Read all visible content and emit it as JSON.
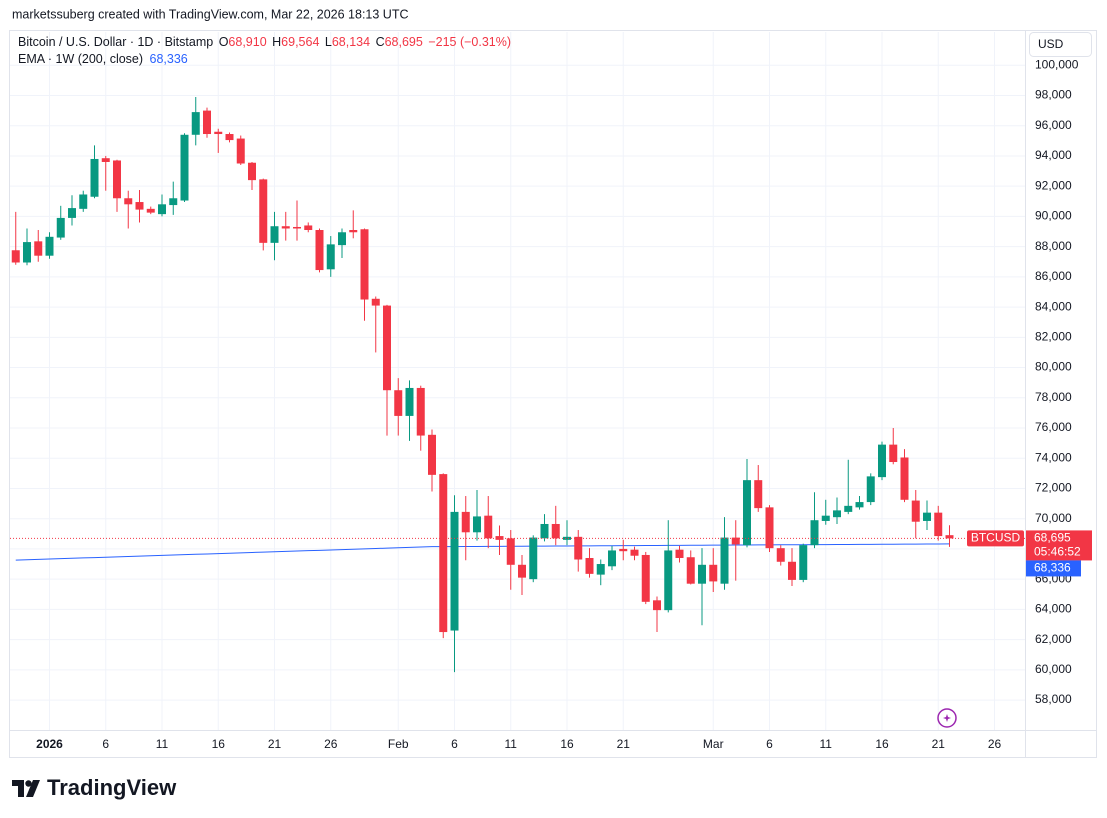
{
  "chart_data": {
    "type": "candlestick",
    "header": "marketssuberg created with TradingView.com, Mar 22, 2026 18:13 UTC",
    "title": "Bitcoin / U.S. Dollar · 1D · Bitstamp",
    "ohlc_keys": [
      "O",
      "H",
      "L",
      "C"
    ],
    "ohlc_legend": [
      {
        "value": 68910,
        "label": "68,910"
      },
      {
        "value": 69564,
        "label": "69,564"
      },
      {
        "value": 68134,
        "label": "68,134"
      },
      {
        "value": 68695,
        "label": "68,695"
      }
    ],
    "change": "−215 (−0.31%)",
    "currency": "USD",
    "symbol": "BTCUSD",
    "countdown": "05:46:52",
    "brand": "TradingView",
    "up_color": "#089981",
    "down_color": "#f23645",
    "grid": true,
    "categories": [
      null,
      null,
      null,
      "2026",
      null,
      null,
      null,
      null,
      "6",
      null,
      null,
      null,
      null,
      "11",
      null,
      null,
      null,
      null,
      "16",
      null,
      null,
      null,
      null,
      "21",
      null,
      null,
      null,
      null,
      "26",
      null,
      null,
      null,
      null,
      null,
      "Feb",
      null,
      null,
      null,
      null,
      "6",
      null,
      null,
      null,
      null,
      "11",
      null,
      null,
      null,
      null,
      "16",
      null,
      null,
      null,
      null,
      "21",
      null,
      null,
      null,
      null,
      null,
      null,
      null,
      "Mar",
      null,
      null,
      null,
      null,
      "6",
      null,
      null,
      null,
      null,
      "11",
      null,
      null,
      null,
      null,
      "16",
      null,
      null,
      null,
      null,
      "21",
      null,
      null,
      null,
      null,
      "26"
    ],
    "open": [
      87760,
      86950,
      88350,
      87400,
      88600,
      89900,
      90500,
      91300,
      93850,
      93700,
      91200,
      90950,
      90500,
      90150,
      90750,
      91050,
      95400,
      97000,
      95600,
      95450,
      95150,
      93550,
      92450,
      88250,
      89350,
      89300,
      89400,
      89100,
      86500,
      88100,
      89100,
      89150,
      84550,
      84100,
      78500,
      76800,
      78650,
      75550,
      72950,
      62600,
      70450,
      69100,
      70200,
      68850,
      68700,
      66950,
      66000,
      68700,
      69650,
      68600,
      68800,
      67400,
      66300,
      66850,
      68000,
      67950,
      67600,
      64600,
      63950,
      67950,
      67450,
      65700,
      66950,
      65700,
      68750,
      68250,
      72550,
      70750,
      68050,
      67150,
      65950,
      68250,
      69850,
      70100,
      70450,
      70750,
      71100,
      72750,
      74900,
      74050,
      71200,
      69850,
      70400,
      68910,
      null,
      null,
      null,
      null
    ],
    "high": [
      90300,
      89200,
      89100,
      88950,
      90700,
      91400,
      91700,
      94700,
      94000,
      93750,
      91700,
      91750,
      90650,
      91450,
      92300,
      95500,
      97900,
      97200,
      95800,
      95550,
      95350,
      93600,
      92500,
      90300,
      90300,
      91050,
      89600,
      89200,
      88700,
      89200,
      90400,
      89200,
      84700,
      84150,
      79300,
      79150,
      78800,
      75900,
      73000,
      71550,
      71500,
      71900,
      71500,
      69550,
      69250,
      67600,
      68900,
      70300,
      70850,
      69900,
      69250,
      68050,
      67300,
      68200,
      68600,
      68150,
      67800,
      64850,
      69900,
      68200,
      67900,
      68050,
      68050,
      70100,
      69900,
      73950,
      73550,
      70900,
      68250,
      68050,
      68350,
      71750,
      71250,
      71400,
      73900,
      71500,
      73000,
      75100,
      76000,
      74600,
      71900,
      71200,
      70850,
      69564,
      null,
      null,
      null,
      null
    ],
    "low": [
      86800,
      86770,
      87000,
      87200,
      88450,
      89400,
      90300,
      91200,
      91700,
      90300,
      89200,
      89600,
      90150,
      90000,
      90100,
      90950,
      94700,
      95200,
      94200,
      94900,
      93400,
      91750,
      87750,
      87100,
      88400,
      88400,
      88950,
      86300,
      86000,
      87250,
      88550,
      83100,
      81000,
      75500,
      75500,
      75150,
      74500,
      71800,
      62100,
      59850,
      67250,
      68550,
      68050,
      67600,
      65300,
      64950,
      65800,
      68500,
      68250,
      68250,
      66500,
      66100,
      65600,
      66600,
      67250,
      67250,
      64350,
      62500,
      63800,
      67100,
      65650,
      62950,
      65150,
      65300,
      65900,
      68100,
      70450,
      67800,
      66900,
      65550,
      65800,
      68050,
      69600,
      69650,
      70300,
      70600,
      70900,
      72550,
      73600,
      71100,
      68700,
      69250,
      68550,
      68134,
      null,
      null,
      null,
      null
    ],
    "close": [
      86950,
      88300,
      87400,
      88650,
      89900,
      90550,
      91450,
      93800,
      93600,
      91200,
      90800,
      90450,
      90250,
      90800,
      91200,
      95400,
      96900,
      95450,
      95450,
      95050,
      93500,
      92400,
      88250,
      89350,
      89200,
      89200,
      89100,
      86450,
      88150,
      88950,
      88950,
      84500,
      84100,
      78500,
      76800,
      78650,
      75500,
      72900,
      62500,
      70450,
      69100,
      70150,
      68700,
      68600,
      66950,
      66100,
      68750,
      69650,
      68700,
      68800,
      67300,
      66350,
      67000,
      67900,
      67850,
      67550,
      64500,
      63950,
      67900,
      67400,
      65700,
      66950,
      65850,
      68750,
      68300,
      72550,
      70700,
      68050,
      67150,
      65950,
      68250,
      69900,
      70200,
      70550,
      70850,
      71100,
      72800,
      74900,
      73750,
      71250,
      69800,
      70400,
      68850,
      68695,
      null,
      null,
      null,
      null
    ],
    "indicators": [
      {
        "name": "EMA · 1W (200, close)",
        "color": "#2962ff",
        "values": [
          67260,
          67284,
          67308,
          67332,
          67356,
          67380,
          67404,
          67428,
          67452,
          67476,
          67500,
          67524,
          67548,
          67572,
          67596,
          67620,
          67644,
          67668,
          67692,
          67716,
          67740,
          67764,
          67788,
          67812,
          67836,
          67860,
          67884,
          67908,
          67932,
          67956,
          67980,
          68004,
          68028,
          68052,
          68076,
          68100,
          68124,
          68148,
          68152,
          68156,
          68160,
          68164,
          68168,
          68172,
          68176,
          68180,
          68184,
          68188,
          68192,
          68196,
          68200,
          68204,
          68208,
          68212,
          68216,
          68220,
          68224,
          68228,
          68232,
          68236,
          68240,
          68244,
          68248,
          68252,
          68256,
          68260,
          68264,
          68268,
          68272,
          68276,
          68280,
          68284,
          68288,
          68292,
          68296,
          68300,
          68304,
          68308,
          68312,
          68316,
          68320,
          68324,
          68328,
          68336,
          null,
          null,
          null,
          null
        ],
        "last": {
          "value": 68336,
          "label": "68,336"
        }
      }
    ],
    "ylim": [
      56000,
      102200
    ],
    "yticks": [
      {
        "value": 58000,
        "label": "58,000"
      },
      {
        "value": 60000,
        "label": "60,000"
      },
      {
        "value": 62000,
        "label": "62,000"
      },
      {
        "value": 64000,
        "label": "64,000"
      },
      {
        "value": 66000,
        "label": "66,000"
      },
      {
        "value": 68000,
        "label": "68,000"
      },
      {
        "value": 70000,
        "label": "70,000"
      },
      {
        "value": 72000,
        "label": "72,000"
      },
      {
        "value": 74000,
        "label": "74,000"
      },
      {
        "value": 76000,
        "label": "76,000"
      },
      {
        "value": 78000,
        "label": "78,000"
      },
      {
        "value": 80000,
        "label": "80,000"
      },
      {
        "value": 82000,
        "label": "82,000"
      },
      {
        "value": 84000,
        "label": "84,000"
      },
      {
        "value": 86000,
        "label": "86,000"
      },
      {
        "value": 88000,
        "label": "88,000"
      },
      {
        "value": 90000,
        "label": "90,000"
      },
      {
        "value": 92000,
        "label": "92,000"
      },
      {
        "value": 94000,
        "label": "94,000"
      },
      {
        "value": 96000,
        "label": "96,000"
      },
      {
        "value": 98000,
        "label": "98,000"
      },
      {
        "value": 100000,
        "label": "100,000"
      }
    ]
  }
}
